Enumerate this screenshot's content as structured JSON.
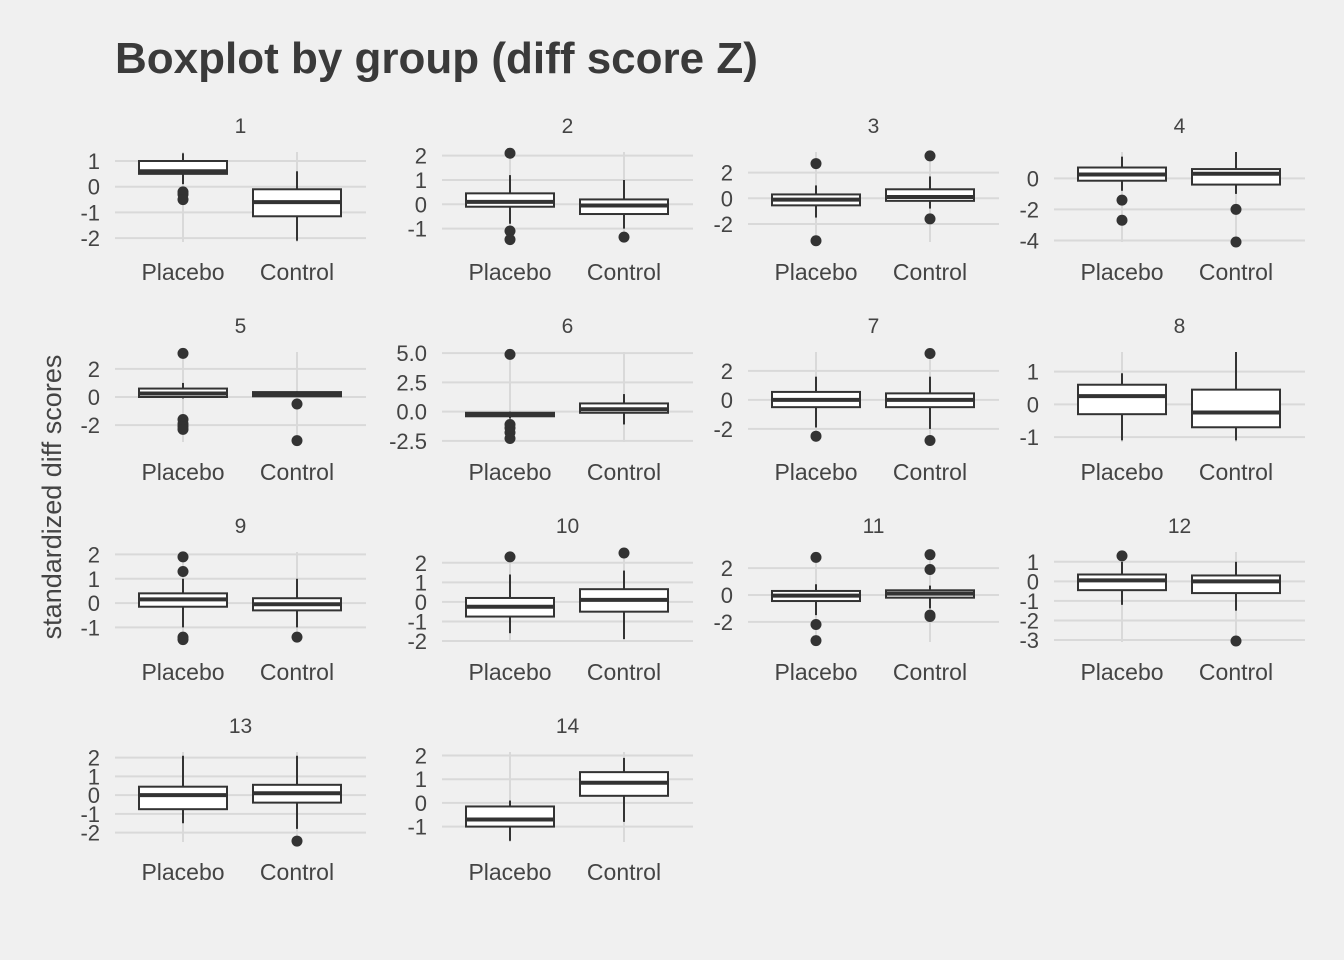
{
  "chart_data": {
    "type": "boxplot",
    "title": "Boxplot by group (diff score Z)",
    "ylabel": "standardized diff scores",
    "categories": [
      "Placebo",
      "Control"
    ],
    "facets": [
      {
        "label": "1",
        "ylim": [
          -2.15,
          1.35
        ],
        "ticks": [
          {
            "v": 1,
            "t": "1"
          },
          {
            "v": 0,
            "t": "0"
          },
          {
            "v": -1,
            "t": "-1"
          },
          {
            "v": -2,
            "t": "-2"
          }
        ],
        "boxes": [
          {
            "min": 0.1,
            "q1": 0.5,
            "median": 0.6,
            "q3": 1.0,
            "max": 1.3,
            "outliers": [
              -0.2,
              -0.3,
              -0.5
            ]
          },
          {
            "min": -2.1,
            "q1": -1.15,
            "median": -0.6,
            "q3": -0.1,
            "max": 0.6,
            "outliers": []
          }
        ]
      },
      {
        "label": "2",
        "ylim": [
          -1.55,
          2.15
        ],
        "ticks": [
          {
            "v": 2,
            "t": "2"
          },
          {
            "v": 1,
            "t": "1"
          },
          {
            "v": 0,
            "t": "0"
          },
          {
            "v": -1,
            "t": "-1"
          }
        ],
        "boxes": [
          {
            "min": -0.8,
            "q1": -0.1,
            "median": 0.1,
            "q3": 0.45,
            "max": 1.2,
            "outliers": [
              2.1,
              -1.1,
              -1.45
            ]
          },
          {
            "min": -1.0,
            "q1": -0.4,
            "median": -0.05,
            "q3": 0.2,
            "max": 1.0,
            "outliers": [
              -1.35
            ]
          }
        ]
      },
      {
        "label": "3",
        "ylim": [
          -3.4,
          3.6
        ],
        "ticks": [
          {
            "v": 2,
            "t": "2"
          },
          {
            "v": 0,
            "t": "0"
          },
          {
            "v": -2,
            "t": "-2"
          }
        ],
        "boxes": [
          {
            "min": -1.5,
            "q1": -0.55,
            "median": -0.1,
            "q3": 0.3,
            "max": 1.0,
            "outliers": [
              2.7,
              -3.3
            ]
          },
          {
            "min": -0.8,
            "q1": -0.2,
            "median": 0.1,
            "q3": 0.7,
            "max": 1.7,
            "outliers": [
              3.3,
              -1.6
            ]
          }
        ]
      },
      {
        "label": "4",
        "ylim": [
          -4.1,
          1.7
        ],
        "ticks": [
          {
            "v": 0,
            "t": "0"
          },
          {
            "v": -2,
            "t": "-2"
          },
          {
            "v": -4,
            "t": "-4"
          }
        ],
        "boxes": [
          {
            "min": -0.8,
            "q1": -0.15,
            "median": 0.25,
            "q3": 0.7,
            "max": 1.4,
            "outliers": [
              -1.4,
              -2.7
            ]
          },
          {
            "min": -1.0,
            "q1": -0.4,
            "median": 0.3,
            "q3": 0.6,
            "max": 1.7,
            "outliers": [
              -2.0,
              -4.1
            ]
          }
        ]
      },
      {
        "label": "5",
        "ylim": [
          -3.2,
          3.2
        ],
        "ticks": [
          {
            "v": 2,
            "t": "2"
          },
          {
            "v": 0,
            "t": "0"
          },
          {
            "v": -2,
            "t": "-2"
          }
        ],
        "boxes": [
          {
            "min": -0.1,
            "q1": 0.0,
            "median": 0.25,
            "q3": 0.6,
            "max": 1.0,
            "outliers": [
              3.1,
              -1.6,
              -1.9,
              -2.1,
              -2.3
            ]
          },
          {
            "min": 0.0,
            "q1": 0.05,
            "median": 0.2,
            "q3": 0.35,
            "max": 0.4,
            "outliers": [
              -0.5,
              -3.1
            ]
          }
        ]
      },
      {
        "label": "6",
        "ylim": [
          -2.6,
          5.1
        ],
        "ticks": [
          {
            "v": 5,
            "t": "5.0"
          },
          {
            "v": 2.5,
            "t": "2.5"
          },
          {
            "v": 0,
            "t": "0.0"
          },
          {
            "v": -2.5,
            "t": "-2.5"
          }
        ],
        "boxes": [
          {
            "min": -0.6,
            "q1": -0.4,
            "median": -0.2,
            "q3": -0.1,
            "max": 0.0,
            "outliers": [
              4.9,
              -1.1,
              -1.4,
              -1.8,
              -2.3
            ]
          },
          {
            "min": -1.1,
            "q1": -0.1,
            "median": 0.2,
            "q3": 0.7,
            "max": 1.5,
            "outliers": []
          }
        ]
      },
      {
        "label": "7",
        "ylim": [
          -2.9,
          3.3
        ],
        "ticks": [
          {
            "v": 2,
            "t": "2"
          },
          {
            "v": 0,
            "t": "0"
          },
          {
            "v": -2,
            "t": "-2"
          }
        ],
        "boxes": [
          {
            "min": -1.9,
            "q1": -0.5,
            "median": 0.0,
            "q3": 0.55,
            "max": 1.6,
            "outliers": [
              -2.5
            ]
          },
          {
            "min": -2.0,
            "q1": -0.5,
            "median": 0.0,
            "q3": 0.45,
            "max": 1.6,
            "outliers": [
              3.2,
              -2.8
            ]
          }
        ]
      },
      {
        "label": "8",
        "ylim": [
          -1.15,
          1.6
        ],
        "ticks": [
          {
            "v": 1,
            "t": "1"
          },
          {
            "v": 0,
            "t": "0"
          },
          {
            "v": -1,
            "t": "-1"
          }
        ],
        "boxes": [
          {
            "min": -1.1,
            "q1": -0.3,
            "median": 0.25,
            "q3": 0.6,
            "max": 0.95,
            "outliers": []
          },
          {
            "min": -1.1,
            "q1": -0.7,
            "median": -0.25,
            "q3": 0.45,
            "max": 1.6,
            "outliers": []
          }
        ]
      },
      {
        "label": "9",
        "ylim": [
          -1.6,
          2.1
        ],
        "ticks": [
          {
            "v": 2,
            "t": "2"
          },
          {
            "v": 1,
            "t": "1"
          },
          {
            "v": 0,
            "t": "0"
          },
          {
            "v": -1,
            "t": "-1"
          }
        ],
        "boxes": [
          {
            "min": -1.0,
            "q1": -0.15,
            "median": 0.15,
            "q3": 0.4,
            "max": 1.0,
            "outliers": [
              1.9,
              1.3,
              -1.4,
              -1.5
            ]
          },
          {
            "min": -1.0,
            "q1": -0.3,
            "median": -0.05,
            "q3": 0.2,
            "max": 1.0,
            "outliers": [
              -1.4
            ]
          }
        ]
      },
      {
        "label": "10",
        "ylim": [
          -2.05,
          2.55
        ],
        "ticks": [
          {
            "v": 2,
            "t": "2"
          },
          {
            "v": 1,
            "t": "1"
          },
          {
            "v": 0,
            "t": "0"
          },
          {
            "v": -1,
            "t": "-1"
          },
          {
            "v": -2,
            "t": "-2"
          }
        ],
        "boxes": [
          {
            "min": -1.6,
            "q1": -0.75,
            "median": -0.25,
            "q3": 0.2,
            "max": 1.4,
            "outliers": [
              2.3
            ]
          },
          {
            "min": -1.9,
            "q1": -0.5,
            "median": 0.1,
            "q3": 0.65,
            "max": 1.6,
            "outliers": [
              2.5
            ]
          }
        ]
      },
      {
        "label": "11",
        "ylim": [
          -3.5,
          3.2
        ],
        "ticks": [
          {
            "v": 2,
            "t": "2"
          },
          {
            "v": 0,
            "t": "0"
          },
          {
            "v": -2,
            "t": "-2"
          }
        ],
        "boxes": [
          {
            "min": -1.5,
            "q1": -0.45,
            "median": -0.05,
            "q3": 0.3,
            "max": 0.8,
            "outliers": [
              2.8,
              -2.2,
              -3.4
            ]
          },
          {
            "min": -1.0,
            "q1": -0.2,
            "median": 0.1,
            "q3": 0.35,
            "max": 0.7,
            "outliers": [
              3.0,
              1.9,
              -1.5,
              -1.6
            ]
          }
        ]
      },
      {
        "label": "12",
        "ylim": [
          -3.1,
          1.5
        ],
        "ticks": [
          {
            "v": 1,
            "t": "1"
          },
          {
            "v": 0,
            "t": "0"
          },
          {
            "v": -1,
            "t": "-1"
          },
          {
            "v": -2,
            "t": "-2"
          },
          {
            "v": -3,
            "t": "-3"
          }
        ],
        "boxes": [
          {
            "min": -1.2,
            "q1": -0.45,
            "median": 0.05,
            "q3": 0.35,
            "max": 1.0,
            "outliers": [
              1.3
            ]
          },
          {
            "min": -1.5,
            "q1": -0.6,
            "median": 0.0,
            "q3": 0.3,
            "max": 1.0,
            "outliers": [
              -3.05
            ]
          }
        ]
      },
      {
        "label": "13",
        "ylim": [
          -2.5,
          2.3
        ],
        "ticks": [
          {
            "v": 2,
            "t": "2"
          },
          {
            "v": 1,
            "t": "1"
          },
          {
            "v": 0,
            "t": "0"
          },
          {
            "v": -1,
            "t": "-1"
          },
          {
            "v": -2,
            "t": "-2"
          }
        ],
        "boxes": [
          {
            "min": -1.5,
            "q1": -0.75,
            "median": 0.0,
            "q3": 0.45,
            "max": 2.1,
            "outliers": []
          },
          {
            "min": -1.8,
            "q1": -0.4,
            "median": 0.1,
            "q3": 0.55,
            "max": 2.1,
            "outliers": [
              -2.45
            ]
          }
        ]
      },
      {
        "label": "14",
        "ylim": [
          -1.65,
          2.15
        ],
        "ticks": [
          {
            "v": 2,
            "t": "2"
          },
          {
            "v": 1,
            "t": "1"
          },
          {
            "v": 0,
            "t": "0"
          },
          {
            "v": -1,
            "t": "-1"
          }
        ],
        "boxes": [
          {
            "min": -1.6,
            "q1": -1.0,
            "median": -0.7,
            "q3": -0.15,
            "max": 0.1,
            "outliers": []
          },
          {
            "min": -0.8,
            "q1": 0.3,
            "median": 0.85,
            "q3": 1.3,
            "max": 1.9,
            "outliers": []
          }
        ]
      }
    ]
  }
}
